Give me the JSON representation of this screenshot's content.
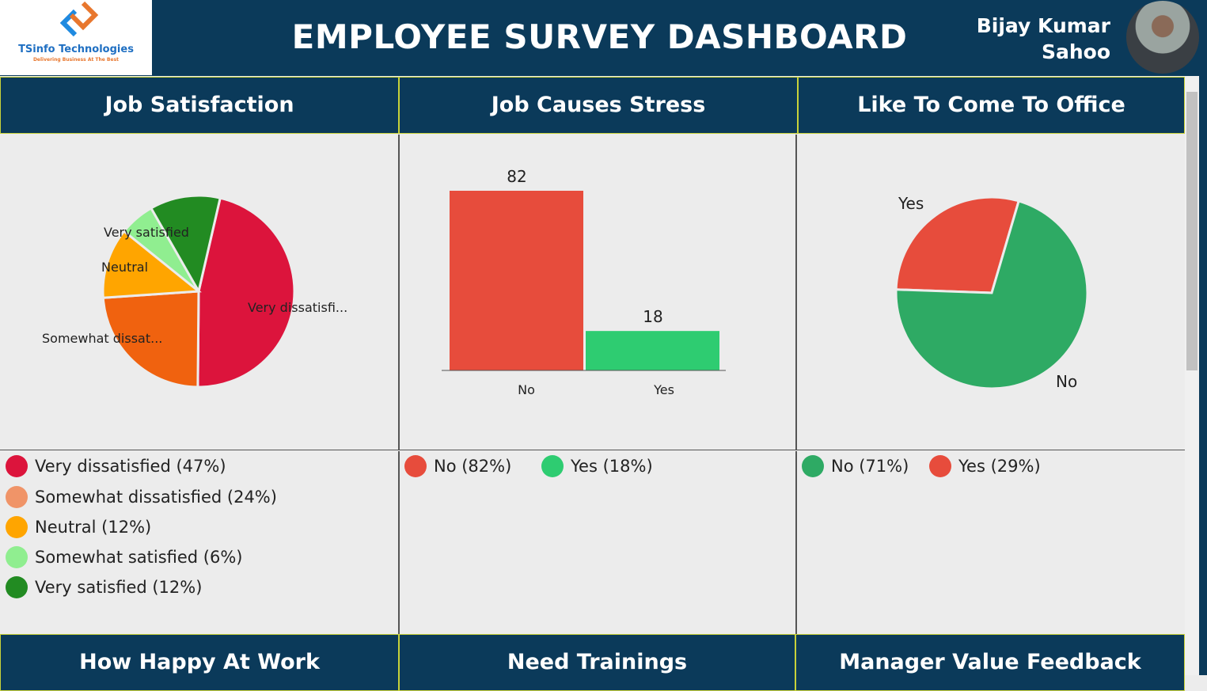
{
  "header": {
    "logo_name": "TSinfo Technologies",
    "logo_tagline": "Delivering Business At The Best",
    "title": "EMPLOYEE SURVEY DASHBOARD",
    "user_line1": "Bijay Kumar",
    "user_line2": "Sahoo"
  },
  "panels": {
    "job_satisfaction": {
      "title": "Job Satisfaction"
    },
    "job_stress": {
      "title": "Job Causes Stress"
    },
    "office": {
      "title": "Like To Come To Office"
    },
    "happy": {
      "title": "How Happy At Work"
    },
    "trainings": {
      "title": "Need Trainings"
    },
    "manager": {
      "title": "Manager Value Feedback"
    }
  },
  "chart_data": [
    {
      "type": "pie",
      "categories": [
        "Very dissatisfied",
        "Somewhat dissatisfied",
        "Neutral",
        "Somewhat satisfied",
        "Very satisfied"
      ],
      "values": [
        47,
        24,
        12,
        6,
        12
      ],
      "slice_labels": [
        "Very dissatisfi...",
        "Somewhat dissat...",
        "Neutral",
        "",
        "Very satisfied"
      ],
      "legend": [
        "Very dissatisfied (47%)",
        "Somewhat dissatisfied (24%)",
        "Neutral (12%)",
        "Somewhat satisfied (6%)",
        "Very satisfied (12%)"
      ],
      "colors": [
        "#dc143c",
        "#f0620f",
        "#ffa500",
        "#90ee90",
        "#228b22"
      ],
      "legend_colors": [
        "#dc143c",
        "#f09468",
        "#ffa500",
        "#90ee90",
        "#228b22"
      ]
    },
    {
      "type": "bar",
      "categories": [
        "No",
        "Yes"
      ],
      "values": [
        82,
        18
      ],
      "legend": [
        "No (82%)",
        "Yes (18%)"
      ],
      "colors": [
        "#e74c3c",
        "#2ecc71"
      ]
    },
    {
      "type": "pie",
      "categories": [
        "Yes",
        "No"
      ],
      "values": [
        29,
        71
      ],
      "legend": [
        "No (71%)",
        "Yes (29%)"
      ],
      "colors": [
        "#e74c3c",
        "#2eaa64"
      ]
    }
  ]
}
